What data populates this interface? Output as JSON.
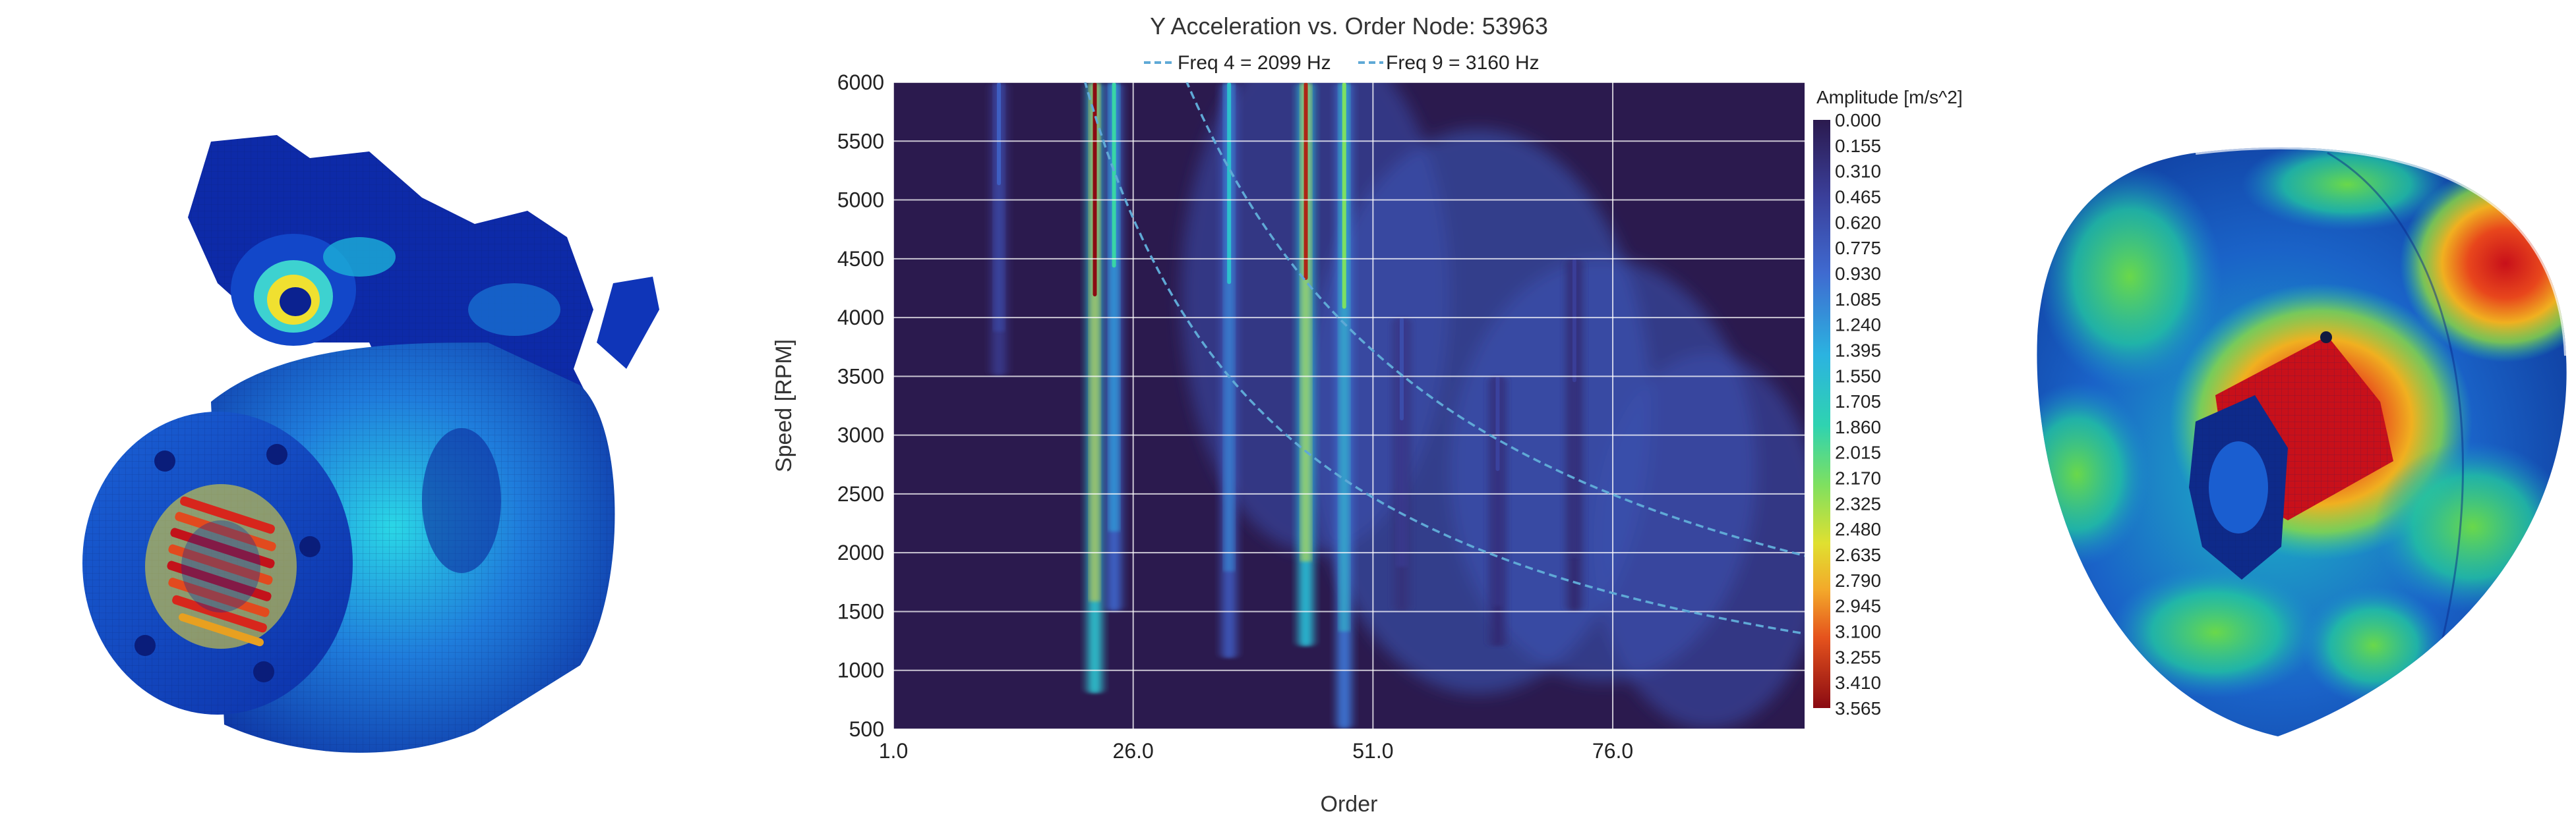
{
  "figure": {
    "left_image": "motor-housing-fem-mesh",
    "right_image": "acoustic-sphere-pressure-contour"
  },
  "chart_data": {
    "type": "heatmap",
    "title": "Y Acceleration vs. Order Node: 53963",
    "xlabel": "Order",
    "ylabel": "Speed [RPM]",
    "xlim": [
      1.0,
      96.0
    ],
    "ylim": [
      500,
      6000
    ],
    "x_ticks": [
      "1.0",
      "26.0",
      "51.0",
      "76.0"
    ],
    "x_tick_values": [
      1.0,
      26.0,
      51.0,
      76.0
    ],
    "y_ticks": [
      "500",
      "1000",
      "1500",
      "2000",
      "2500",
      "3000",
      "3500",
      "4000",
      "4500",
      "5000",
      "5500",
      "6000"
    ],
    "y_tick_values": [
      500,
      1000,
      1500,
      2000,
      2500,
      3000,
      3500,
      4000,
      4500,
      5000,
      5500,
      6000
    ],
    "grid": true,
    "legend_position": "top",
    "series": [
      {
        "name": "Freq 4 = 2099 Hz",
        "frequency_hz": 2099,
        "style": "dashed",
        "color": "#5fa9d6"
      },
      {
        "name": "Freq 9 = 3160 Hz",
        "frequency_hz": 3160,
        "style": "dashed",
        "color": "#5fa9d6"
      }
    ],
    "colorbar": {
      "label": "Amplitude [m/s^2]",
      "min": 0.0,
      "max": 3.565,
      "ticks": [
        "0.000",
        "0.155",
        "0.310",
        "0.465",
        "0.620",
        "0.775",
        "0.930",
        "1.085",
        "1.240",
        "1.395",
        "1.550",
        "1.705",
        "1.860",
        "2.015",
        "2.170",
        "2.325",
        "2.480",
        "2.635",
        "2.790",
        "2.945",
        "3.100",
        "3.255",
        "3.410",
        "3.565"
      ]
    },
    "background_color": "#2b1a4e",
    "order_lines": [
      {
        "order": 12,
        "rpm_range": [
          3500,
          6000
        ],
        "peak": 0.8
      },
      {
        "order": 22,
        "rpm_range": [
          800,
          6000
        ],
        "peak": 3.565
      },
      {
        "order": 24,
        "rpm_range": [
          1500,
          6000
        ],
        "peak": 1.9
      },
      {
        "order": 36,
        "rpm_range": [
          1100,
          6000
        ],
        "peak": 1.6
      },
      {
        "order": 44,
        "rpm_range": [
          1200,
          6000
        ],
        "peak": 3.4
      },
      {
        "order": 48,
        "rpm_range": [
          500,
          6000
        ],
        "peak": 2.2
      },
      {
        "order": 54,
        "rpm_range": [
          1500,
          4000
        ],
        "peak": 0.6
      },
      {
        "order": 64,
        "rpm_range": [
          1200,
          3500
        ],
        "peak": 0.5
      },
      {
        "order": 72,
        "rpm_range": [
          1500,
          4500
        ],
        "peak": 0.45
      }
    ]
  }
}
